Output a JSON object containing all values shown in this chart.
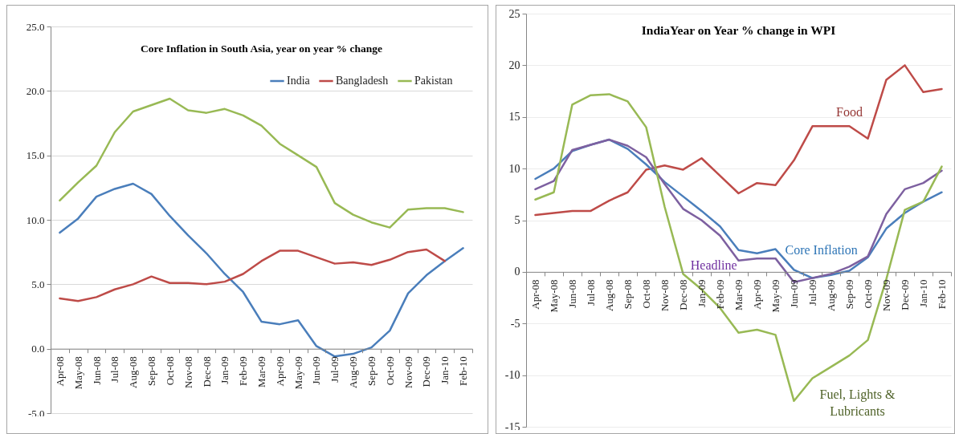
{
  "chart_data": [
    {
      "type": "line",
      "title": "Core Inflation in South Asia, year on year % change",
      "categories": [
        "Apr-08",
        "May-08",
        "Jun-08",
        "Jul-08",
        "Aug-08",
        "Sep-08",
        "Oct-08",
        "Nov-08",
        "Dec-08",
        "Jan-09",
        "Feb-09",
        "Mar-09",
        "Apr-09",
        "May-09",
        "Jun-09",
        "Jul-09",
        "Aug-09",
        "Sep-09",
        "Oct-09",
        "Nov-09",
        "Dec-09",
        "Jan-10",
        "Feb-10"
      ],
      "series": [
        {
          "name": "India",
          "color": "#4a7ebb",
          "values": [
            9.0,
            10.1,
            11.8,
            12.4,
            12.8,
            12.0,
            10.3,
            8.8,
            7.4,
            5.8,
            4.4,
            2.1,
            1.9,
            2.2,
            0.2,
            -0.6,
            -0.4,
            0.1,
            1.4,
            4.3,
            5.7,
            6.8,
            7.8
          ]
        },
        {
          "name": "Bangladesh",
          "color": "#be4b48",
          "values": [
            3.9,
            3.7,
            4.0,
            4.6,
            5.0,
            5.6,
            5.1,
            5.1,
            5.0,
            5.2,
            5.8,
            6.8,
            7.6,
            7.6,
            7.1,
            6.6,
            6.7,
            6.5,
            6.9,
            7.5,
            7.7,
            6.8,
            null
          ]
        },
        {
          "name": "Pakistan",
          "color": "#98b954",
          "values": [
            11.5,
            12.9,
            14.2,
            16.8,
            18.4,
            18.9,
            19.4,
            18.5,
            18.3,
            18.6,
            18.1,
            17.3,
            15.9,
            15.0,
            14.1,
            11.3,
            10.4,
            9.8,
            9.4,
            10.8,
            10.9,
            10.9,
            10.6
          ]
        }
      ],
      "ylim": [
        -5,
        25
      ],
      "yticks": [
        {
          "value": -5,
          "label": "-5.0"
        },
        {
          "value": 0,
          "label": "0.0"
        },
        {
          "value": 5,
          "label": "5.0"
        },
        {
          "value": 10,
          "label": "10.0"
        },
        {
          "value": 15,
          "label": "15.0"
        },
        {
          "value": 20,
          "label": "20.0"
        },
        {
          "value": 25,
          "label": "25.0"
        }
      ],
      "grid": "y",
      "legend": "top right"
    },
    {
      "type": "line",
      "title": "IndiaYear on Year % change in WPI",
      "categories": [
        "Apr-08",
        "May-08",
        "Jun-08",
        "Jul-08",
        "Aug-08",
        "Sep-08",
        "Oct-08",
        "Nov-08",
        "Dec-08",
        "Jan-09",
        "Feb-09",
        "Mar-09",
        "Apr-09",
        "May-09",
        "Jun-09",
        "Jul-09",
        "Aug-09",
        "Sep-09",
        "Oct-09",
        "Nov-09",
        "Dec-09",
        "Jan-10",
        "Feb-10"
      ],
      "series": [
        {
          "name": "Food",
          "color": "#be4b48",
          "values": [
            5.5,
            5.7,
            5.9,
            5.9,
            6.9,
            7.7,
            9.9,
            10.3,
            9.9,
            11.0,
            9.3,
            7.6,
            8.6,
            8.4,
            10.8,
            14.1,
            14.1,
            14.1,
            12.9,
            18.6,
            20.0,
            17.4,
            17.7
          ]
        },
        {
          "name": "Core Inflation",
          "color": "#4a7ebb",
          "values": [
            9.0,
            10.0,
            11.7,
            12.3,
            12.8,
            11.9,
            10.4,
            8.7,
            7.3,
            5.9,
            4.4,
            2.1,
            1.8,
            2.2,
            0.2,
            -0.6,
            -0.3,
            0.1,
            1.4,
            4.2,
            5.7,
            6.8,
            7.7
          ]
        },
        {
          "name": "Headline",
          "color": "#7d60a0",
          "values": [
            8.0,
            8.8,
            11.8,
            12.3,
            12.8,
            12.2,
            11.1,
            8.5,
            6.1,
            5.0,
            3.5,
            1.1,
            1.3,
            1.3,
            -1.0,
            -0.6,
            -0.2,
            0.5,
            1.5,
            5.6,
            8.0,
            8.6,
            9.8
          ]
        },
        {
          "name": "Fuel, Lights & Lubricants",
          "color": "#98b954",
          "values": [
            7.0,
            7.7,
            16.2,
            17.1,
            17.2,
            16.5,
            14.0,
            6.3,
            -0.2,
            -1.7,
            -3.5,
            -5.9,
            -5.6,
            -6.1,
            -12.5,
            -10.3,
            -9.2,
            -8.1,
            -6.6,
            -0.7,
            6.0,
            6.8,
            10.2
          ]
        }
      ],
      "ylim": [
        -15,
        25
      ],
      "yticks": [
        -15,
        -10,
        -5,
        0,
        5,
        10,
        15,
        20,
        25
      ],
      "grid": "y"
    }
  ]
}
